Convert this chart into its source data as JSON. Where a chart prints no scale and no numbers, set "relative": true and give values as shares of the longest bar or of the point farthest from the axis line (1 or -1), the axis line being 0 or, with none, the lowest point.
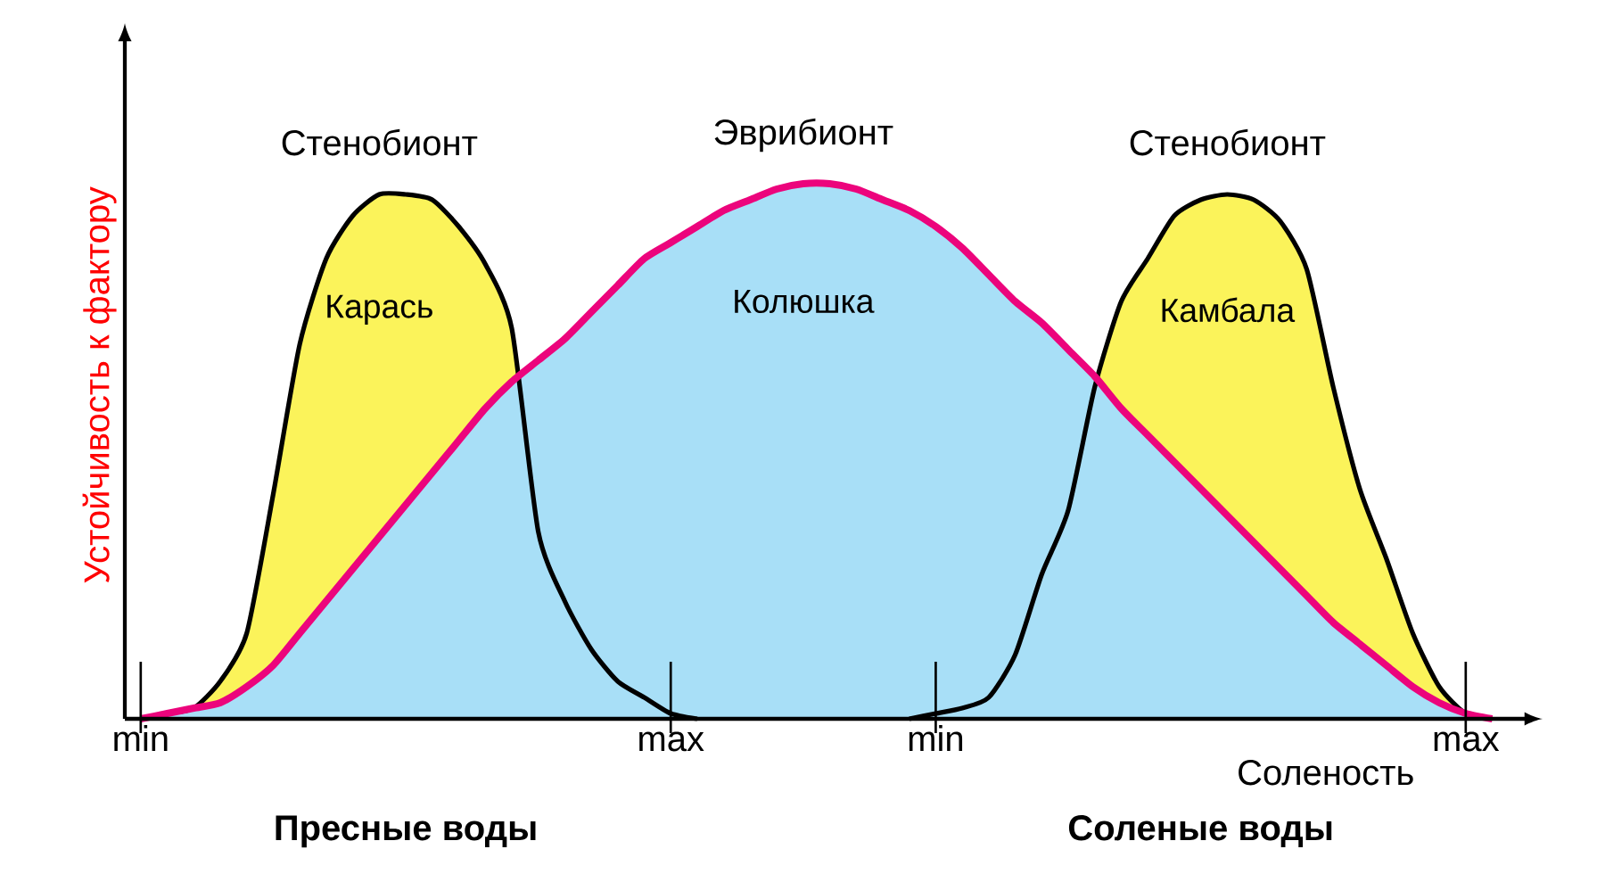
{
  "chart_data": {
    "type": "area",
    "relative": true,
    "ylabel": "Устойчивость к фактору",
    "xlabel": "Соленость",
    "categories": [
      "min",
      null,
      null,
      null,
      null,
      null,
      null,
      null,
      null,
      null,
      null,
      null,
      null,
      null,
      null,
      null,
      null,
      null,
      null,
      null,
      "max",
      null,
      null,
      null,
      null,
      null,
      null,
      null,
      null,
      null,
      "min",
      null,
      null,
      null,
      null,
      null,
      null,
      null,
      null,
      null,
      null,
      null,
      null,
      null,
      null,
      null,
      null,
      null,
      null,
      null,
      "max",
      null
    ],
    "legend": false,
    "annotations": [
      "Стенобионт",
      "Эврибионт",
      "Стенобионт",
      "Пресные воды",
      "Соленые воды"
    ],
    "series": [
      {
        "name": "Карась",
        "color": "#fbf35a",
        "values": [
          0,
          0.01,
          0.02,
          0.07,
          0.16,
          0.42,
          0.7,
          0.86,
          0.94,
          0.98,
          0.98,
          0.97,
          0.92,
          0.85,
          0.73,
          0.35,
          0.22,
          0.13,
          0.07,
          0.04,
          0.01,
          0,
          null,
          null,
          null,
          null,
          null,
          null,
          null,
          null,
          null,
          null,
          null,
          null,
          null,
          null,
          null,
          null,
          null,
          null,
          null,
          null,
          null,
          null,
          null,
          null,
          null,
          null,
          null,
          null,
          null,
          null
        ]
      },
      {
        "name": "Колюшка",
        "color": "#a8dff7",
        "values": [
          0,
          0.01,
          0.02,
          0.03,
          0.06,
          0.1,
          0.16,
          0.22,
          0.28,
          0.34,
          0.4,
          0.46,
          0.52,
          0.58,
          0.63,
          0.67,
          0.71,
          0.76,
          0.81,
          0.86,
          0.89,
          0.92,
          0.95,
          0.97,
          0.99,
          1.0,
          1.0,
          0.99,
          0.97,
          0.95,
          0.92,
          0.88,
          0.83,
          0.78,
          0.74,
          0.69,
          0.64,
          0.58,
          0.53,
          0.48,
          0.43,
          0.38,
          0.33,
          0.28,
          0.23,
          0.18,
          0.14,
          0.1,
          0.06,
          0.03,
          0.01,
          0
        ]
      },
      {
        "name": "Камбала",
        "color": "#fbf35a",
        "values": [
          null,
          null,
          null,
          null,
          null,
          null,
          null,
          null,
          null,
          null,
          null,
          null,
          null,
          null,
          null,
          null,
          null,
          null,
          null,
          null,
          null,
          null,
          null,
          null,
          null,
          null,
          null,
          null,
          null,
          0,
          0.01,
          0.02,
          0.04,
          0.12,
          0.27,
          0.39,
          0.62,
          0.78,
          0.86,
          0.94,
          0.97,
          0.98,
          0.97,
          0.93,
          0.84,
          0.62,
          0.43,
          0.3,
          0.16,
          0.06,
          0.01,
          0
        ]
      }
    ]
  }
}
